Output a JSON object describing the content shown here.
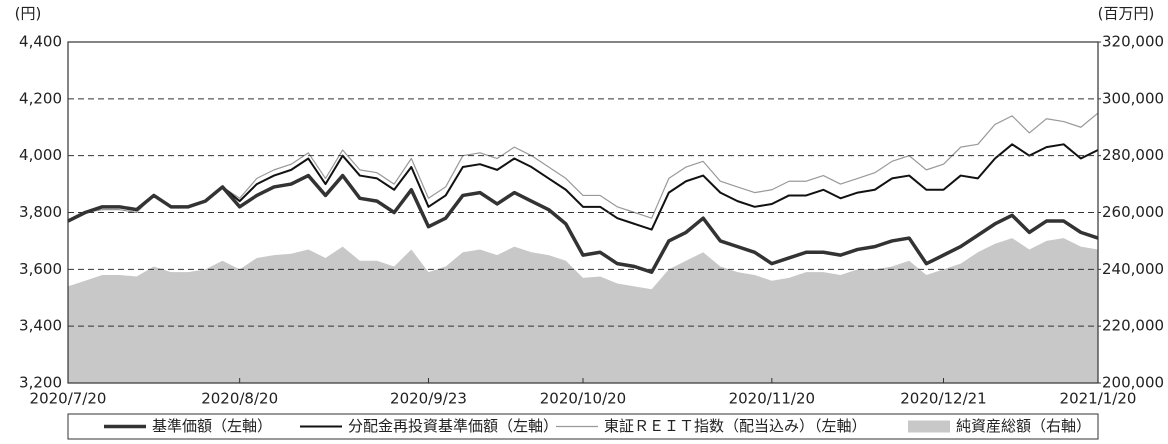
{
  "chart_data": {
    "type": "line",
    "y_label": "(円)",
    "y2_label": "(百万円)",
    "categories": [
      "2020/7/20",
      null,
      null,
      null,
      null,
      null,
      null,
      null,
      null,
      null,
      "2020/8/20",
      null,
      null,
      null,
      null,
      null,
      null,
      null,
      null,
      null,
      null,
      "2020/9/23",
      null,
      null,
      null,
      null,
      null,
      null,
      null,
      null,
      "2020/10/20",
      null,
      null,
      null,
      null,
      null,
      null,
      null,
      null,
      null,
      null,
      "2020/11/20",
      null,
      null,
      null,
      null,
      null,
      null,
      null,
      null,
      null,
      "2020/12/21",
      null,
      null,
      null,
      null,
      null,
      null,
      null,
      null,
      "2021/1/20"
    ],
    "ylim": [
      3200,
      4400
    ],
    "yticks": [
      {
        "value": 3200,
        "label": "3,200"
      },
      {
        "value": 3400,
        "label": "3,400"
      },
      {
        "value": 3600,
        "label": "3,600"
      },
      {
        "value": 3800,
        "label": "3,800"
      },
      {
        "value": 4000,
        "label": "4,000"
      },
      {
        "value": 4200,
        "label": "4,200"
      },
      {
        "value": 4400,
        "label": "4,400"
      }
    ],
    "y2lim": [
      200000,
      320000
    ],
    "y2ticks": [
      {
        "value": 200000,
        "label": "200,000"
      },
      {
        "value": 220000,
        "label": "220,000"
      },
      {
        "value": 240000,
        "label": "240,000"
      },
      {
        "value": 260000,
        "label": "260,000"
      },
      {
        "value": 280000,
        "label": "280,000"
      },
      {
        "value": 300000,
        "label": "300,000"
      },
      {
        "value": 320000,
        "label": "320,000"
      }
    ],
    "grid": true,
    "legend": "bottom",
    "series": [
      {
        "name": "基準価額（左軸）",
        "color": "#333333",
        "values": [
          3770,
          3800,
          3820,
          3820,
          3810,
          3860,
          3820,
          3820,
          3840,
          3890,
          3820,
          3860,
          3890,
          3900,
          3930,
          3860,
          3930,
          3850,
          3840,
          3800,
          3880,
          3750,
          3780,
          3860,
          3870,
          3830,
          3870,
          3840,
          3810,
          3760,
          3650,
          3660,
          3620,
          3610,
          3590,
          3700,
          3730,
          3780,
          3700,
          3680,
          3660,
          3620,
          3640,
          3660,
          3660,
          3650,
          3670,
          3680,
          3700,
          3710,
          3620,
          3650,
          3680,
          3720,
          3760,
          3790,
          3730,
          3770,
          3770,
          3730,
          3710
        ]
      },
      {
        "name": "分配金再投資基準価額（左軸）",
        "color": "#111111",
        "values": [
          3770,
          3800,
          3820,
          3820,
          3810,
          3860,
          3820,
          3820,
          3840,
          3890,
          3840,
          3900,
          3930,
          3950,
          3990,
          3900,
          4000,
          3930,
          3920,
          3880,
          3960,
          3820,
          3860,
          3960,
          3970,
          3950,
          3990,
          3960,
          3920,
          3880,
          3820,
          3820,
          3780,
          3760,
          3740,
          3870,
          3910,
          3930,
          3870,
          3840,
          3820,
          3830,
          3860,
          3860,
          3880,
          3850,
          3870,
          3880,
          3920,
          3930,
          3880,
          3880,
          3930,
          3920,
          3990,
          4040,
          4000,
          4030,
          4040,
          3990,
          4020
        ]
      },
      {
        "name": "東証ＲＥＩＴ指数（配当込み）（左軸）",
        "color": "#999999",
        "values": [
          3770,
          3800,
          3810,
          3810,
          3800,
          3860,
          3820,
          3820,
          3840,
          3890,
          3850,
          3920,
          3950,
          3970,
          4010,
          3920,
          4020,
          3950,
          3940,
          3900,
          3990,
          3850,
          3890,
          4000,
          4010,
          3990,
          4030,
          4000,
          3960,
          3920,
          3860,
          3860,
          3820,
          3800,
          3780,
          3920,
          3960,
          3980,
          3910,
          3890,
          3870,
          3880,
          3910,
          3910,
          3930,
          3900,
          3920,
          3940,
          3980,
          4000,
          3950,
          3970,
          4030,
          4040,
          4110,
          4140,
          4080,
          4130,
          4120,
          4100,
          4150
        ]
      },
      {
        "name": "純資産総額（右軸）",
        "color": "#c8c8c8",
        "type": "area",
        "axis": "y2",
        "values": [
          234000,
          236000,
          238000,
          238000,
          237500,
          241000,
          239000,
          239000,
          240000,
          243000,
          240000,
          244000,
          245000,
          245500,
          247000,
          244000,
          248000,
          243000,
          243000,
          241000,
          247000,
          239000,
          241000,
          246000,
          247000,
          245000,
          248000,
          246000,
          245000,
          243000,
          237000,
          237500,
          235000,
          234000,
          233000,
          240000,
          243000,
          246000,
          241000,
          239000,
          238000,
          236000,
          237000,
          239000,
          239000,
          238000,
          240000,
          240000,
          241000,
          243000,
          238000,
          240000,
          242000,
          246000,
          249000,
          251000,
          247000,
          250000,
          251000,
          248000,
          247000
        ]
      }
    ]
  }
}
